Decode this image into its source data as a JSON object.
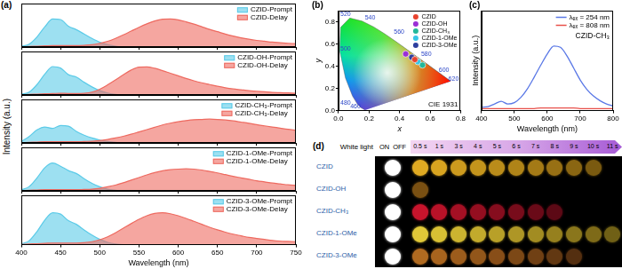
{
  "chart_data": [
    {
      "type": "area",
      "annotations": [
        "(a)"
      ],
      "ylabel": "Intensity (a.u.)",
      "x": [
        400,
        410,
        420,
        430,
        440,
        450,
        460,
        470,
        480,
        490,
        500,
        510,
        520,
        530,
        540,
        550,
        560,
        570,
        580,
        590,
        600,
        610,
        620,
        630,
        640,
        650,
        660,
        670,
        680,
        690,
        700,
        710,
        720,
        730,
        740,
        750
      ],
      "series": [
        {
          "name": "CZID-Prompt",
          "color": "#5ccbe8",
          "values": [
            0.02,
            0.1,
            0.35,
            0.7,
            0.97,
            0.95,
            0.72,
            0.6,
            0.45,
            0.3,
            0.17,
            0.08,
            0.03,
            0,
            0,
            0,
            0,
            0,
            0,
            0,
            0,
            0,
            0,
            0,
            0,
            0,
            0,
            0,
            0,
            0,
            0,
            0,
            0,
            0,
            0,
            0
          ]
        },
        {
          "name": "CZID-Delay",
          "color": "#ee6a60",
          "values": [
            0.01,
            0.02,
            0.03,
            0.04,
            0.05,
            0.05,
            0.05,
            0.05,
            0.06,
            0.08,
            0.13,
            0.2,
            0.3,
            0.42,
            0.55,
            0.68,
            0.8,
            0.9,
            0.96,
            0.97,
            0.94,
            0.87,
            0.79,
            0.7,
            0.61,
            0.53,
            0.45,
            0.38,
            0.32,
            0.27,
            0.23,
            0.2,
            0.17,
            0.15,
            0.13,
            0.12
          ]
        }
      ],
      "xlim": [
        400,
        750
      ],
      "xticks": [
        400,
        450,
        500,
        550,
        600,
        650,
        700,
        750
      ],
      "ylim": [
        0,
        1.5
      ],
      "grid": false,
      "legend": "upper right",
      "tick_labels": false
    },
    {
      "type": "area",
      "x": [
        400,
        410,
        420,
        430,
        440,
        450,
        460,
        470,
        480,
        490,
        500,
        510,
        520,
        530,
        540,
        550,
        560,
        570,
        580,
        590,
        600,
        610,
        620,
        630,
        640,
        650,
        660,
        670,
        680,
        690,
        700,
        710,
        720,
        730,
        740,
        750
      ],
      "series": [
        {
          "name": "CZID-OH-Prompt",
          "color": "#5ccbe8",
          "values": [
            0.02,
            0.1,
            0.36,
            0.72,
            0.98,
            0.93,
            0.7,
            0.62,
            0.44,
            0.28,
            0.15,
            0.07,
            0.02,
            0,
            0,
            0,
            0,
            0,
            0,
            0,
            0,
            0,
            0,
            0,
            0,
            0,
            0,
            0,
            0,
            0,
            0,
            0,
            0,
            0,
            0,
            0
          ]
        },
        {
          "name": "CZID-OH-Delay",
          "color": "#ee6a60",
          "values": [
            0.01,
            0.02,
            0.03,
            0.04,
            0.05,
            0.06,
            0.05,
            0.05,
            0.06,
            0.1,
            0.2,
            0.35,
            0.52,
            0.7,
            0.86,
            0.96,
            0.97,
            0.92,
            0.84,
            0.75,
            0.66,
            0.57,
            0.49,
            0.42,
            0.36,
            0.3,
            0.25,
            0.21,
            0.18,
            0.15,
            0.13,
            0.11,
            0.09,
            0.08,
            0.07,
            0.06
          ]
        }
      ],
      "xlim": [
        400,
        750
      ],
      "xticks": [
        400,
        450,
        500,
        550,
        600,
        650,
        700,
        750
      ],
      "ylim": [
        0,
        1.5
      ],
      "grid": false,
      "legend": "upper right",
      "tick_labels": false
    },
    {
      "type": "area",
      "x": [
        400,
        410,
        420,
        430,
        440,
        450,
        460,
        470,
        480,
        490,
        500,
        510,
        520,
        530,
        540,
        550,
        560,
        570,
        580,
        590,
        600,
        610,
        620,
        630,
        640,
        650,
        660,
        670,
        680,
        690,
        700,
        710,
        720,
        730,
        740,
        750
      ],
      "series": [
        {
          "name": "CZID-CH₃-Prompt",
          "color": "#5ccbe8",
          "values": [
            0.05,
            0.22,
            0.45,
            0.55,
            0.5,
            0.6,
            0.58,
            0.4,
            0.27,
            0.17,
            0.1,
            0.05,
            0.02,
            0,
            0,
            0,
            0,
            0,
            0,
            0,
            0,
            0,
            0,
            0,
            0,
            0,
            0,
            0,
            0,
            0,
            0,
            0,
            0,
            0,
            0,
            0
          ]
        },
        {
          "name": "CZID-CH₃-Delay",
          "color": "#ee6a60",
          "values": [
            0.01,
            0.02,
            0.03,
            0.04,
            0.04,
            0.04,
            0.04,
            0.04,
            0.05,
            0.06,
            0.08,
            0.12,
            0.17,
            0.23,
            0.3,
            0.38,
            0.46,
            0.54,
            0.62,
            0.68,
            0.73,
            0.77,
            0.8,
            0.81,
            0.82,
            0.81,
            0.79,
            0.76,
            0.72,
            0.68,
            0.63,
            0.59,
            0.55,
            0.51,
            0.47,
            0.44
          ]
        }
      ],
      "xlim": [
        400,
        750
      ],
      "xticks": [
        400,
        450,
        500,
        550,
        600,
        650,
        700,
        750
      ],
      "ylim": [
        0,
        1.5
      ],
      "grid": false,
      "legend": "upper right",
      "tick_labels": false
    },
    {
      "type": "area",
      "x": [
        400,
        410,
        420,
        430,
        440,
        450,
        460,
        470,
        480,
        490,
        500,
        510,
        520,
        530,
        540,
        550,
        560,
        570,
        580,
        590,
        600,
        610,
        620,
        630,
        640,
        650,
        660,
        670,
        680,
        690,
        700,
        710,
        720,
        730,
        740,
        750
      ],
      "series": [
        {
          "name": "CZID-1-OMe-Prompt",
          "color": "#5ccbe8",
          "values": [
            0.03,
            0.15,
            0.45,
            0.8,
            0.96,
            0.85,
            0.7,
            0.6,
            0.42,
            0.26,
            0.14,
            0.06,
            0.02,
            0,
            0,
            0,
            0,
            0,
            0,
            0,
            0,
            0,
            0,
            0,
            0,
            0,
            0,
            0,
            0,
            0,
            0,
            0,
            0,
            0,
            0,
            0
          ]
        },
        {
          "name": "CZID-1-OMe-Delay",
          "color": "#ee6a60",
          "values": [
            0.01,
            0.02,
            0.03,
            0.04,
            0.04,
            0.04,
            0.04,
            0.04,
            0.05,
            0.06,
            0.09,
            0.14,
            0.2,
            0.28,
            0.37,
            0.46,
            0.55,
            0.63,
            0.69,
            0.73,
            0.75,
            0.76,
            0.75,
            0.72,
            0.67,
            0.62,
            0.56,
            0.5,
            0.45,
            0.4,
            0.35,
            0.31,
            0.27,
            0.24,
            0.21,
            0.19
          ]
        }
      ],
      "xlim": [
        400,
        750
      ],
      "xticks": [
        400,
        450,
        500,
        550,
        600,
        650,
        700,
        750
      ],
      "ylim": [
        0,
        1.5
      ],
      "grid": false,
      "legend": "upper right",
      "tick_labels": false
    },
    {
      "type": "area",
      "xlabel": "Wavelength (nm)",
      "x": [
        400,
        410,
        420,
        430,
        440,
        450,
        460,
        470,
        480,
        490,
        500,
        510,
        520,
        530,
        540,
        550,
        560,
        570,
        580,
        590,
        600,
        610,
        620,
        630,
        640,
        650,
        660,
        670,
        680,
        690,
        700,
        710,
        720,
        730,
        740,
        750
      ],
      "series": [
        {
          "name": "CZID-3-OMe-Prompt",
          "color": "#5ccbe8",
          "values": [
            0.02,
            0.12,
            0.4,
            0.75,
            0.97,
            0.93,
            0.73,
            0.62,
            0.45,
            0.29,
            0.16,
            0.07,
            0.02,
            0,
            0,
            0,
            0,
            0,
            0,
            0,
            0,
            0,
            0,
            0,
            0,
            0,
            0,
            0,
            0,
            0,
            0,
            0,
            0,
            0,
            0,
            0
          ]
        },
        {
          "name": "CZID-3-OMe-Delay",
          "color": "#ee6a60",
          "values": [
            0.01,
            0.02,
            0.03,
            0.04,
            0.05,
            0.05,
            0.05,
            0.05,
            0.06,
            0.09,
            0.15,
            0.24,
            0.36,
            0.5,
            0.64,
            0.77,
            0.88,
            0.95,
            0.97,
            0.94,
            0.88,
            0.8,
            0.71,
            0.62,
            0.53,
            0.45,
            0.38,
            0.32,
            0.27,
            0.22,
            0.19,
            0.16,
            0.13,
            0.11,
            0.1,
            0.09
          ]
        }
      ],
      "xlim": [
        400,
        750
      ],
      "xticks": [
        400,
        450,
        500,
        550,
        600,
        650,
        700,
        750
      ],
      "ylim": [
        0,
        1.5
      ],
      "grid": false,
      "legend": "upper right",
      "tick_labels": "x"
    },
    {
      "type": "scatter",
      "annotations": [
        "(b)",
        "CIE 1931"
      ],
      "xlabel": "x",
      "ylabel": "y",
      "xlim": [
        0,
        0.8
      ],
      "xticks": [
        {
          "value": 0,
          "label": "0.0"
        },
        0.2,
        0.4,
        0.6,
        0.8
      ],
      "ylim": [
        0,
        0.9
      ],
      "yticks": [
        {
          "value": 0,
          "label": "0.0"
        },
        0.2,
        0.4,
        0.6,
        0.8
      ],
      "grid": false,
      "legend": "upper right",
      "marker": "circle",
      "locus": {
        "x": [
          0.1741,
          0.144,
          0.1241,
          0.0913,
          0.0454,
          0.0082,
          0.0139,
          0.0743,
          0.1547,
          0.2296,
          0.3016,
          0.3731,
          0.4441,
          0.5125,
          0.5752,
          0.627,
          0.6915,
          0.719,
          0.7347
        ],
        "y": [
          0.005,
          0.0297,
          0.0578,
          0.1327,
          0.295,
          0.5384,
          0.7502,
          0.8338,
          0.8059,
          0.7543,
          0.6923,
          0.6245,
          0.5547,
          0.4866,
          0.4242,
          0.3725,
          0.3083,
          0.2809,
          0.2653
        ],
        "labels": [
          null,
          460,
          null,
          480,
          null,
          500,
          null,
          520,
          null,
          540,
          null,
          560,
          null,
          580,
          null,
          600,
          620,
          null,
          null
        ]
      },
      "series": [
        {
          "name": "CZID",
          "color": "#e8432e",
          "x": [
            0.5
          ],
          "values": [
            0.46
          ]
        },
        {
          "name": "CZID-OH",
          "color": "#9a2fd6",
          "x": [
            0.44
          ],
          "values": [
            0.51
          ]
        },
        {
          "name": "CZID-CH₃",
          "color": "#22b89a",
          "x": [
            0.55
          ],
          "values": [
            0.41
          ]
        },
        {
          "name": "CZID-1-OMe",
          "color": "#36c6e6",
          "x": [
            0.52
          ],
          "values": [
            0.44
          ]
        },
        {
          "name": "CZID-3-OMe",
          "color": "#2e3f9e",
          "x": [
            0.48
          ],
          "values": [
            0.48
          ]
        }
      ]
    },
    {
      "type": "line",
      "annotations": [
        "(c)",
        "CZID-CH₃"
      ],
      "xlabel": "Wavelength (nm)",
      "ylabel": "Intensity (a.u.)",
      "x": [
        400,
        420,
        440,
        460,
        480,
        500,
        520,
        540,
        560,
        580,
        600,
        620,
        640,
        660,
        680,
        700,
        720,
        740,
        760,
        780,
        800
      ],
      "series": [
        {
          "name": "λₑₓ = 254 nm",
          "color": "#5a78e6",
          "values": [
            0.05,
            0.06,
            0.1,
            0.14,
            0.1,
            0.12,
            0.2,
            0.33,
            0.5,
            0.68,
            0.85,
            0.97,
            0.95,
            0.82,
            0.64,
            0.46,
            0.32,
            0.22,
            0.15,
            0.1,
            0.07
          ]
        },
        {
          "name": "λₑₓ = 808 nm",
          "color": "#e8504a",
          "values": [
            0.03,
            0.03,
            0.03,
            0.03,
            0.03,
            0.03,
            0.03,
            0.03,
            0.03,
            0.04,
            0.04,
            0.04,
            0.04,
            0.04,
            0.04,
            0.03,
            0.03,
            0.03,
            0.03,
            0.03,
            0.03
          ]
        }
      ],
      "xlim": [
        400,
        800
      ],
      "xticks": [
        400,
        500,
        600,
        700,
        800
      ],
      "ylim": [
        0,
        1.5
      ],
      "grid": false,
      "legend": "upper right",
      "tick_labels": "x"
    }
  ],
  "afterglow": {
    "label": "(d)",
    "header": "White light",
    "on": "ON",
    "off": "OFF",
    "times": [
      "0.5 s",
      "1 s",
      "3 s",
      "4 s",
      "5 s",
      "6 s",
      "7 s",
      "8 s",
      "9 s",
      "10 s",
      "11 s"
    ],
    "rows": [
      {
        "name": "CZID",
        "colors": [
          "#ffffff",
          "#e0aa22",
          "#d8a420",
          "#cc9a1e",
          "#c4941c",
          "#ba8c1a",
          "#b08418",
          "#a47a16",
          "#987014",
          "#8a6612",
          "#7a5a10",
          null
        ]
      },
      {
        "name": "CZID-OH",
        "colors": [
          "#ffffff",
          "#7a5012",
          null,
          null,
          null,
          null,
          null,
          null,
          null,
          null,
          null,
          null
        ]
      },
      {
        "name": "CZID-CH₃",
        "colors": [
          "#ffffff",
          "#c8142c",
          "#b81228",
          "#a41024",
          "#940e20",
          "#860d1e",
          "#780c1b",
          "#6a0a18",
          "#5c0915",
          null,
          null,
          null
        ]
      },
      {
        "name": "CZID-1-OMe",
        "colors": [
          "#ffffff",
          "#e0c838",
          "#d8c034",
          "#ccb430",
          "#c2aa2c",
          "#b8a028",
          "#ae9626",
          "#a28c22",
          "#96801e",
          "#8a761c",
          "#7e6a18",
          "#706016"
        ]
      },
      {
        "name": "CZID-3-OMe",
        "colors": [
          "#ffffff",
          "#b06a20",
          "#a8641e",
          "#9c5c1c",
          "#92561a",
          "#884e18",
          "#7c4816",
          "#704014",
          "#623812",
          "#542f10",
          null,
          null
        ]
      }
    ]
  }
}
